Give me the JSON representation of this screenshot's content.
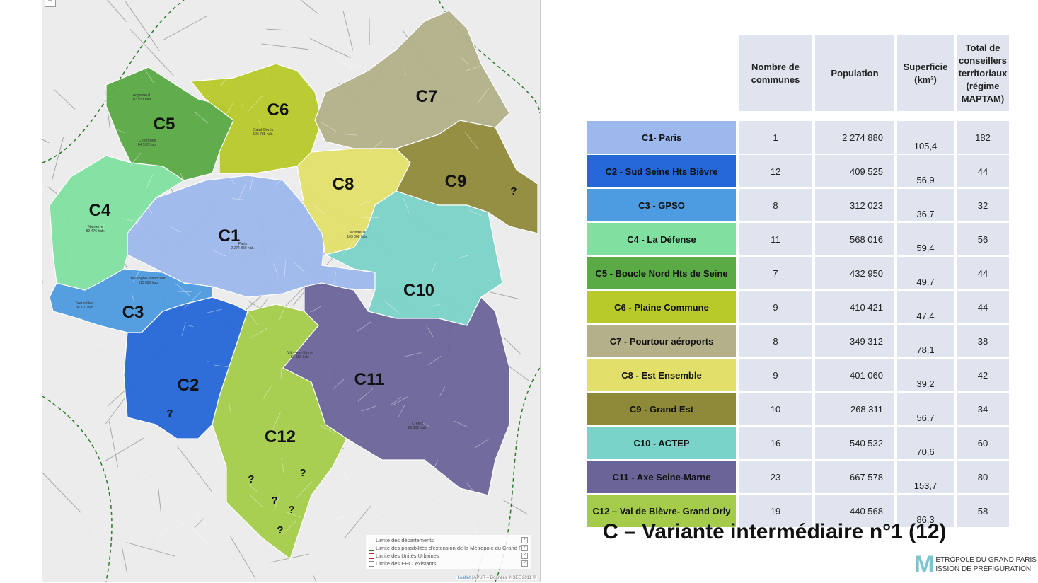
{
  "map": {
    "zoom_out_label": "−",
    "zones": [
      {
        "id": "C1",
        "color": "#9db8ec",
        "label_pos": [
          324,
          333
        ]
      },
      {
        "id": "C2",
        "color": "#2566d8",
        "label_pos": [
          266,
          544
        ]
      },
      {
        "id": "C3",
        "color": "#4d9be0",
        "label_pos": [
          188,
          441
        ]
      },
      {
        "id": "C4",
        "color": "#7fe0a0",
        "label_pos": [
          141,
          297
        ]
      },
      {
        "id": "C5",
        "color": "#5aaa45",
        "label_pos": [
          232,
          175
        ]
      },
      {
        "id": "C6",
        "color": "#b8c92a",
        "label_pos": [
          393,
          155
        ]
      },
      {
        "id": "C7",
        "color": "#b3b08a",
        "label_pos": [
          603,
          136
        ]
      },
      {
        "id": "C8",
        "color": "#e2e06a",
        "label_pos": [
          485,
          260
        ]
      },
      {
        "id": "C9",
        "color": "#8f8a3a",
        "label_pos": [
          644,
          256
        ]
      },
      {
        "id": "C10",
        "color": "#7ad3c8",
        "label_pos": [
          592,
          410
        ]
      },
      {
        "id": "C11",
        "color": "#6b6499",
        "label_pos": [
          522,
          536
        ]
      },
      {
        "id": "C12",
        "color": "#a4cc4a",
        "label_pos": [
          396,
          617
        ]
      }
    ],
    "question_mark": "?",
    "communes": [
      {
        "name": "Paris",
        "pop": "2 274 880 hab."
      },
      {
        "name": "Argenteuil",
        "pop": "103 933 hab."
      },
      {
        "name": "Colombes",
        "pop": "84 572 hab."
      },
      {
        "name": "Nanterre",
        "pop": "89 476 hab."
      },
      {
        "name": "Saint-Denis",
        "pop": "106 785 hab."
      },
      {
        "name": "Montreuil",
        "pop": "103 068 hab."
      },
      {
        "name": "Créteil",
        "pop": "89 989 hab."
      },
      {
        "name": "Vitry-sur-Seine",
        "pop": "85 380 hab."
      },
      {
        "name": "Boulogne-Billancourt",
        "pop": "113 085 hab."
      },
      {
        "name": "Versailles",
        "pop": "86 110 hab."
      }
    ],
    "legend": [
      {
        "label": "Limite des départements",
        "color": "#2a7a2a",
        "checked": true
      },
      {
        "label": "Limite des possibilités d'extension de la Métropole du Grand Paris",
        "color": "#2a7a2a",
        "checked": true
      },
      {
        "label": "Limite des Unités Urbaines",
        "color": "#c0303a",
        "checked": true
      },
      {
        "label": "Limite des EPCI existants",
        "color": "#888888",
        "checked": true
      }
    ],
    "attribution_link": "Leaflet",
    "attribution": " | APUR – Données INSEE 2011 ©"
  },
  "table": {
    "headers": [
      "Nombre de communes",
      "Population",
      "Superficie (km²)",
      "Total de conseillers territoriaux (régime MAPTAM)"
    ],
    "rows": [
      {
        "zone": "C1- Paris",
        "color": "#9db8ec",
        "text_color": "#111",
        "communes": "1",
        "population": "2 274 880",
        "superficie": "105,4",
        "conseillers": "182"
      },
      {
        "zone": "C2 - Sud Seine Hts Bièvre",
        "color": "#2566d8",
        "text_color": "#111",
        "communes": "12",
        "population": "409 525",
        "superficie": "56,9",
        "conseillers": "44"
      },
      {
        "zone": "C3 - GPSO",
        "color": "#4d9be0",
        "text_color": "#111",
        "communes": "8",
        "population": "312 023",
        "superficie": "36,7",
        "conseillers": "32"
      },
      {
        "zone": "C4 - La Défense",
        "color": "#7fe0a0",
        "text_color": "#111",
        "communes": "11",
        "population": "568 016",
        "superficie": "59,4",
        "conseillers": "56"
      },
      {
        "zone": "C5 - Boucle Nord Hts de Seine",
        "color": "#5aaa45",
        "text_color": "#111",
        "communes": "7",
        "population": "432 950",
        "superficie": "49,7",
        "conseillers": "44"
      },
      {
        "zone": "C6 - Plaine Commune",
        "color": "#b8c92a",
        "text_color": "#111",
        "communes": "9",
        "population": "410 421",
        "superficie": "47,4",
        "conseillers": "44"
      },
      {
        "zone": "C7 - Pourtour aéroports",
        "color": "#b3b08a",
        "text_color": "#111",
        "communes": "8",
        "population": "349 312",
        "superficie": "78,1",
        "conseillers": "38"
      },
      {
        "zone": "C8 - Est Ensemble",
        "color": "#e2e06a",
        "text_color": "#111",
        "communes": "9",
        "population": "401 060",
        "superficie": "39,2",
        "conseillers": "42"
      },
      {
        "zone": "C9 - Grand Est",
        "color": "#8f8a3a",
        "text_color": "#111",
        "communes": "10",
        "population": "268 311",
        "superficie": "56,7",
        "conseillers": "34"
      },
      {
        "zone": "C10 - ACTEP",
        "color": "#7ad3c8",
        "text_color": "#111",
        "communes": "16",
        "population": "540 532",
        "superficie": "70,6",
        "conseillers": "60"
      },
      {
        "zone": "C11 - Axe Seine-Marne",
        "color": "#6b6499",
        "text_color": "#111",
        "communes": "23",
        "population": "667 578",
        "superficie": "153,7",
        "conseillers": "80"
      },
      {
        "zone": "C12 – Val de Bièvre- Grand Orly",
        "color": "#a4cc4a",
        "text_color": "#111",
        "communes": "19",
        "population": "440 568",
        "superficie": "86,3",
        "conseillers": "58"
      }
    ]
  },
  "title": "C – Variante intermédiaire n°1 (12)",
  "logo": {
    "letter": "M",
    "line1": "ETROPOLE DU GRAND PARIS",
    "line2": "ISSION DE PRÉFIGURATION"
  }
}
